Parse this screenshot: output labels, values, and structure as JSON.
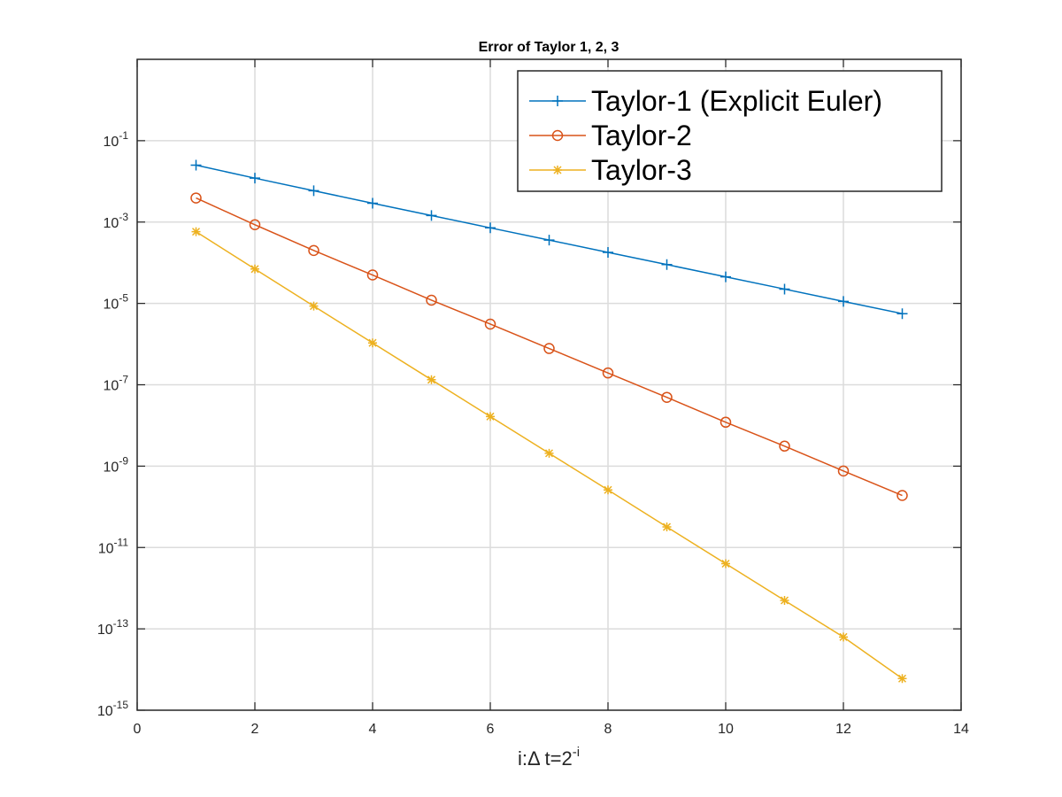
{
  "chart_data": {
    "type": "line",
    "title": "Error of Taylor 1, 2, 3",
    "xlabel_main": "i:Δ t=2",
    "xlabel_sup": "-i",
    "ylabel": "",
    "xlim": [
      0,
      14
    ],
    "ylim_log10": [
      -15,
      1
    ],
    "yscale": "log",
    "grid": true,
    "legend_position": "top-right",
    "x_ticks": [
      "0",
      "2",
      "4",
      "6",
      "8",
      "10",
      "12",
      "14"
    ],
    "y_ticks": [
      {
        "base": "10",
        "exp": "-1"
      },
      {
        "base": "10",
        "exp": "-3"
      },
      {
        "base": "10",
        "exp": "-5"
      },
      {
        "base": "10",
        "exp": "-7"
      },
      {
        "base": "10",
        "exp": "-9"
      },
      {
        "base": "10",
        "exp": "-11"
      },
      {
        "base": "10",
        "exp": "-13"
      },
      {
        "base": "10",
        "exp": "-15"
      }
    ],
    "x": [
      1,
      2,
      3,
      4,
      5,
      6,
      7,
      8,
      9,
      10,
      11,
      12,
      13
    ],
    "series": [
      {
        "name": "Taylor-1 (Explicit Euler)",
        "color": "#0072BD",
        "marker": "plus",
        "values": [
          0.025,
          0.012,
          0.0059,
          0.0029,
          0.00145,
          0.00072,
          0.00036,
          0.00018,
          9e-05,
          4.5e-05,
          2.25e-05,
          1.12e-05,
          5.6e-06
        ]
      },
      {
        "name": "Taylor-2",
        "color": "#D95319",
        "marker": "circle",
        "values": [
          0.0039,
          0.00086,
          0.0002,
          5e-05,
          1.2e-05,
          3.1e-06,
          7.8e-07,
          1.95e-07,
          4.9e-08,
          1.2e-08,
          3.1e-09,
          7.6e-10,
          1.9e-10
        ]
      },
      {
        "name": "Taylor-3",
        "color": "#EDB120",
        "marker": "asterisk",
        "values": [
          0.00058,
          7e-05,
          8.6e-06,
          1.07e-06,
          1.33e-07,
          1.66e-08,
          2.07e-09,
          2.6e-10,
          3.2e-11,
          4e-12,
          5e-13,
          6.3e-14,
          6e-15
        ]
      }
    ]
  }
}
